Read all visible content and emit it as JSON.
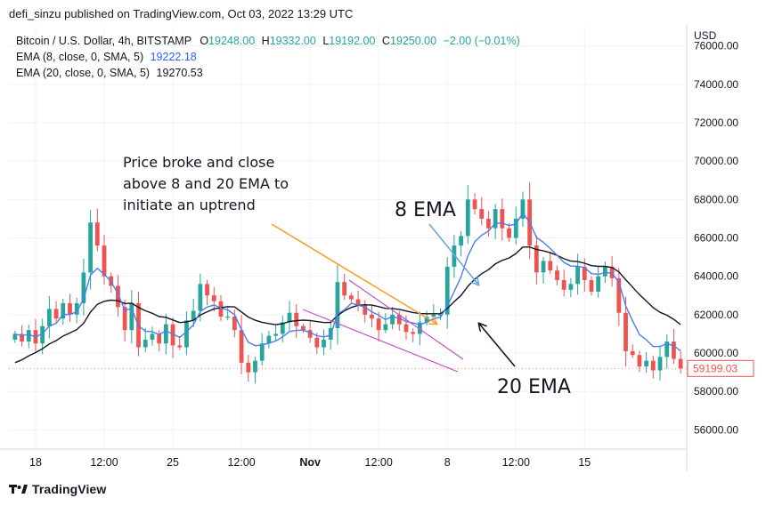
{
  "header": {
    "published": "defi_sinzu published on TradingView.com, Oct 03, 2022 13:29 UTC"
  },
  "legend": {
    "symbol": "Bitcoin / U.S. Dollar, 4h, BITSTAMP",
    "o_label": "O",
    "o_value": "19248.00",
    "h_label": "H",
    "h_value": "19332.00",
    "l_label": "L",
    "l_value": "19192.00",
    "c_label": "C",
    "c_value": "19250.00",
    "change": "−2.00 (−0.01%)",
    "ema8_label": "EMA (8, close, 0, SMA, 5)",
    "ema8_value": "19222.18",
    "ema20_label": "EMA (20, close, 0, SMA, 5)",
    "ema20_value": "19270.53"
  },
  "colors": {
    "up": "#26a69a",
    "down": "#ef5350",
    "ema8": "#4a7df0",
    "ema20": "#131722",
    "arrow_orange": "#f7a12b",
    "channel": "#c74fd1",
    "arrow_blue": "#6aa6e0",
    "price_tag": "#ef5350",
    "grid": "#f0f3fa"
  },
  "chart_data": {
    "type": "candlestick",
    "currency": "USD",
    "ylim": [
      55000,
      77000
    ],
    "y_ticks": [
      56000,
      58000,
      60000,
      62000,
      64000,
      66000,
      68000,
      70000,
      72000,
      74000,
      76000
    ],
    "y_tick_labels": [
      "56000.00",
      "58000.00",
      "60000.00",
      "62000.00",
      "64000.00",
      "66000.00",
      "68000.00",
      "70000.00",
      "72000.00",
      "74000.00",
      "76000.00"
    ],
    "x_ticks": [
      {
        "label": "18",
        "bold": false,
        "i": 3
      },
      {
        "label": "12:00",
        "bold": false,
        "i": 13
      },
      {
        "label": "25",
        "bold": false,
        "i": 23
      },
      {
        "label": "12:00",
        "bold": false,
        "i": 33
      },
      {
        "label": "Nov",
        "bold": true,
        "i": 43
      },
      {
        "label": "12:00",
        "bold": false,
        "i": 53
      },
      {
        "label": "8",
        "bold": false,
        "i": 63
      },
      {
        "label": "12:00",
        "bold": false,
        "i": 73
      },
      {
        "label": "15",
        "bold": false,
        "i": 83
      }
    ],
    "last_price_label": "59199.03",
    "closes": [
      61000,
      60600,
      61200,
      60500,
      61400,
      62300,
      61800,
      62600,
      62000,
      62600,
      64200,
      66800,
      65600,
      64000,
      63500,
      62400,
      61200,
      62600,
      60300,
      60700,
      61000,
      60500,
      61500,
      60400,
      60300,
      61700,
      62200,
      63600,
      63000,
      62700,
      61900,
      61900,
      61200,
      59500,
      59000,
      59600,
      60500,
      60900,
      61000,
      61600,
      62100,
      61400,
      61200,
      60800,
      60300,
      60700,
      61300,
      63700,
      63000,
      62800,
      62500,
      62000,
      61800,
      61200,
      61500,
      62000,
      61500,
      61100,
      61000,
      61600,
      61900,
      62000,
      62000,
      64500,
      65600,
      66100,
      68000,
      67500,
      67000,
      66500,
      67500,
      66500,
      66000,
      67000,
      68000,
      65600,
      64200,
      64800,
      64300,
      63800,
      63300,
      63600,
      64500,
      63800,
      63200,
      64000,
      64500,
      63900,
      62100,
      60100,
      59900,
      59300,
      59600,
      59100,
      59800,
      60600,
      59700,
      59200
    ],
    "series": [
      {
        "name": "EMA (8, close, 0, SMA, 5)",
        "values": [
          61000,
          60905,
          60973,
          60845,
          61010,
          61405,
          61551,
          62013,
          62008,
          62151,
          62834,
          64070,
          64416,
          64102,
          63719,
          63098,
          62230,
          62318,
          61426,
          61142,
          61108,
          60971,
          61158,
          60989,
          60816,
          61124,
          61475,
          62169,
          62395,
          62507,
          62339,
          62247,
          61997,
          61220,
          60574,
          60387,
          60412,
          60520,
          60627,
          60846,
          61125,
          61189,
          61192,
          61074,
          60902,
          60847,
          60925,
          62035,
          62250,
          62591,
          62499,
          62389,
          62144,
          61974,
          61745,
          61900,
          61811,
          61647,
          61568,
          61486,
          61600,
          61793,
          61866,
          62455,
          63197,
          63970,
          65062,
          65800,
          66134,
          66356,
          66765,
          66771,
          66644,
          66723,
          67300,
          66812,
          66019,
          65770,
          65444,
          65093,
          64723,
          64537,
          64523,
          64450,
          64136,
          64100,
          64202,
          64157,
          63710,
          62464,
          61683,
          60964,
          60695,
          60341,
          60345,
          60493,
          60381,
          60119
        ]
      },
      {
        "name": "EMA (20, close, 0, SMA, 5)",
        "values": [
          59500,
          59648,
          59858,
          60026,
          60231,
          60476,
          60650,
          60887,
          61047,
          61226,
          61556,
          62139,
          62536,
          62700,
          62759,
          62725,
          62583,
          62600,
          62380,
          62206,
          62074,
          61903,
          61864,
          61724,
          61589,
          61623,
          61705,
          61982,
          62153,
          62304,
          62358,
          62420,
          62406,
          62140,
          61878,
          61710,
          61603,
          61537,
          61480,
          61530,
          61642,
          61689,
          61715,
          61696,
          61641,
          61592,
          61602,
          61950,
          62200,
          62380,
          62491,
          62518,
          62497,
          62419,
          62325,
          62323,
          62274,
          62193,
          62113,
          62060,
          62047,
          62048,
          62050,
          62325,
          62678,
          63003,
          63479,
          63847,
          64134,
          64343,
          64646,
          64829,
          64953,
          65186,
          65525,
          65524,
          65395,
          65323,
          65225,
          65089,
          64915,
          64791,
          64765,
          64682,
          64553,
          64519,
          64517,
          64457,
          64233,
          63824,
          63441,
          63047,
          62712,
          62368,
          62125,
          61975,
          61759,
          61487
        ]
      }
    ],
    "annotations": {
      "text_main": [
        "Price broke and close",
        "above 8 and 20 EMA to",
        "initiate an uptrend"
      ],
      "label_8ema": "8 EMA",
      "label_20ema": "20 EMA"
    }
  },
  "footer": {
    "brand": "TradingView"
  }
}
